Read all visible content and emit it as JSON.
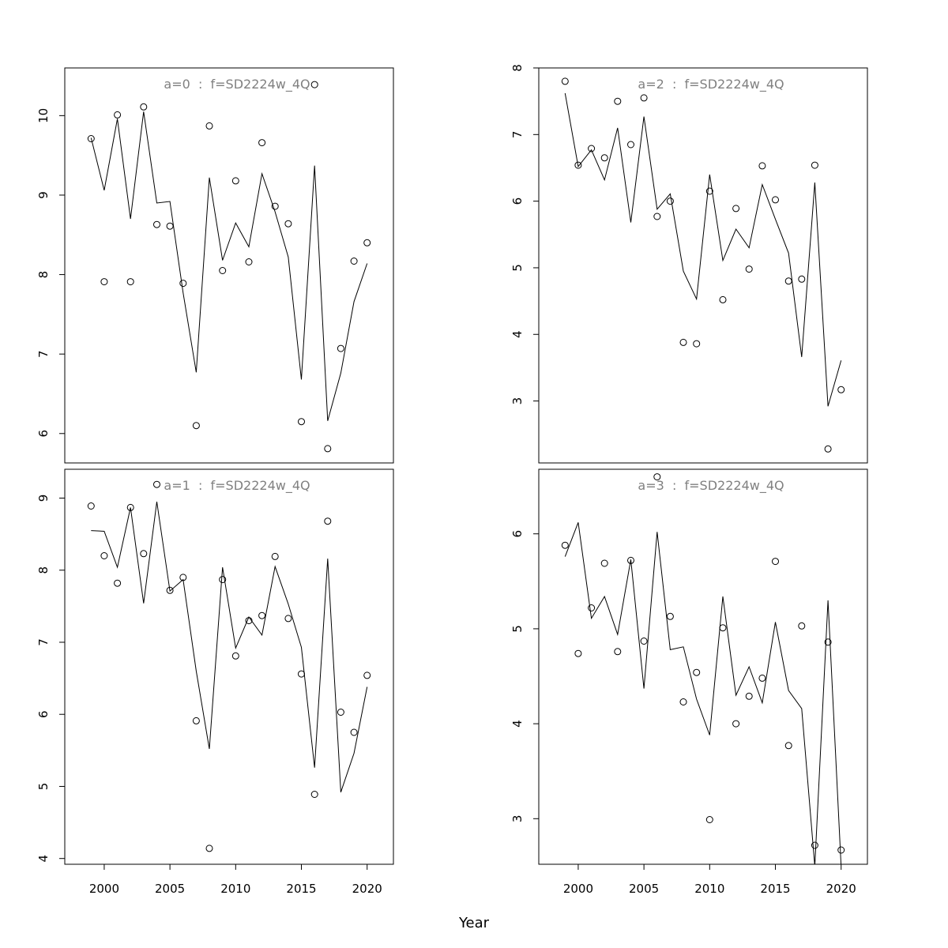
{
  "figure": {
    "xlabel": "Year"
  },
  "chart_data": [
    {
      "type": "scatter",
      "title": "a=0  :  f=SD2224w_4Q",
      "xlabel": "",
      "ylabel": "",
      "xlim": [
        1997,
        2022
      ],
      "ylim": [
        5.63,
        10.6
      ],
      "yticks": [
        6,
        7,
        8,
        9,
        10
      ],
      "xticks": [
        2000,
        2005,
        2010,
        2015,
        2020
      ],
      "show_xtick_labels": false,
      "x": [
        1999,
        2000,
        2001,
        2002,
        2003,
        2004,
        2005,
        2006,
        2007,
        2008,
        2009,
        2010,
        2011,
        2012,
        2013,
        2014,
        2015,
        2016,
        2017,
        2018,
        2019,
        2020
      ],
      "series": [
        {
          "kind": "points",
          "values": [
            9.71,
            7.91,
            10.01,
            7.91,
            10.11,
            8.63,
            8.61,
            7.89,
            6.1,
            9.87,
            8.05,
            9.18,
            8.16,
            9.66,
            8.86,
            8.64,
            6.15,
            10.39,
            5.81,
            7.07,
            8.17,
            8.4
          ]
        },
        {
          "kind": "line",
          "values": [
            9.72,
            9.06,
            9.96,
            8.7,
            10.05,
            8.9,
            8.92,
            7.77,
            6.77,
            9.22,
            8.18,
            8.65,
            8.35,
            9.27,
            8.79,
            8.22,
            6.68,
            9.37,
            6.16,
            6.76,
            7.66,
            8.14
          ]
        }
      ]
    },
    {
      "type": "scatter",
      "title": "a=2  :  f=SD2224w_4Q",
      "xlabel": "",
      "ylabel": "",
      "xlim": [
        1997,
        2022
      ],
      "ylim": [
        2.07,
        8.0
      ],
      "yticks": [
        3,
        4,
        5,
        6,
        7,
        8
      ],
      "xticks": [
        2000,
        2005,
        2010,
        2015,
        2020
      ],
      "show_xtick_labels": false,
      "x": [
        1999,
        2000,
        2001,
        2002,
        2003,
        2004,
        2005,
        2006,
        2007,
        2008,
        2009,
        2010,
        2011,
        2012,
        2013,
        2014,
        2015,
        2016,
        2017,
        2018,
        2019,
        2020
      ],
      "series": [
        {
          "kind": "points",
          "values": [
            7.8,
            6.54,
            6.79,
            6.65,
            7.5,
            6.85,
            7.55,
            5.77,
            6.0,
            3.88,
            3.86,
            6.15,
            4.52,
            5.89,
            4.98,
            6.53,
            6.02,
            4.8,
            4.83,
            6.54,
            2.28,
            3.17
          ]
        },
        {
          "kind": "line",
          "values": [
            7.62,
            6.52,
            6.77,
            6.32,
            7.1,
            5.68,
            7.27,
            5.88,
            6.11,
            4.95,
            4.53,
            6.4,
            5.11,
            5.58,
            5.3,
            6.25,
            5.73,
            5.22,
            3.66,
            6.28,
            2.92,
            3.61
          ]
        }
      ]
    },
    {
      "type": "scatter",
      "title": "a=1  :  f=SD2224w_4Q",
      "xlabel": "",
      "ylabel": "",
      "xlim": [
        1997,
        2022
      ],
      "ylim": [
        3.92,
        9.4
      ],
      "yticks": [
        4,
        5,
        6,
        7,
        8,
        9
      ],
      "xticks": [
        2000,
        2005,
        2010,
        2015,
        2020
      ],
      "show_xtick_labels": true,
      "x": [
        1999,
        2000,
        2001,
        2002,
        2003,
        2004,
        2005,
        2006,
        2007,
        2008,
        2009,
        2010,
        2011,
        2012,
        2013,
        2014,
        2015,
        2016,
        2017,
        2018,
        2019,
        2020
      ],
      "series": [
        {
          "kind": "points",
          "values": [
            8.89,
            8.2,
            7.82,
            8.87,
            8.23,
            9.19,
            7.72,
            7.9,
            5.91,
            4.14,
            7.87,
            6.81,
            7.3,
            7.37,
            8.19,
            7.33,
            6.56,
            4.89,
            8.68,
            6.03,
            5.75,
            6.54
          ]
        },
        {
          "kind": "line",
          "values": [
            8.55,
            8.54,
            8.04,
            8.87,
            7.54,
            8.95,
            7.71,
            7.87,
            6.6,
            5.52,
            8.04,
            6.92,
            7.35,
            7.1,
            8.05,
            7.53,
            6.93,
            5.26,
            8.16,
            4.92,
            5.46,
            6.38
          ]
        }
      ]
    },
    {
      "type": "scatter",
      "title": "a=3  :  f=SD2224w_4Q",
      "xlabel": "",
      "ylabel": "",
      "xlim": [
        1997,
        2022
      ],
      "ylim": [
        2.52,
        6.68
      ],
      "yticks": [
        3,
        4,
        5,
        6
      ],
      "xticks": [
        2000,
        2005,
        2010,
        2015,
        2020
      ],
      "show_xtick_labels": true,
      "x": [
        1999,
        2000,
        2001,
        2002,
        2003,
        2004,
        2005,
        2006,
        2007,
        2008,
        2009,
        2010,
        2011,
        2012,
        2013,
        2014,
        2015,
        2016,
        2017,
        2018,
        2019,
        2020
      ],
      "series": [
        {
          "kind": "points",
          "values": [
            5.88,
            4.74,
            5.22,
            5.69,
            4.76,
            5.72,
            4.87,
            6.6,
            5.13,
            4.23,
            4.54,
            2.99,
            5.01,
            4.0,
            4.29,
            4.48,
            5.71,
            3.77,
            5.03,
            2.72,
            4.86,
            2.67
          ]
        },
        {
          "kind": "line",
          "values": [
            5.76,
            6.12,
            5.11,
            5.34,
            4.94,
            5.73,
            4.37,
            6.02,
            4.78,
            4.81,
            4.26,
            3.88,
            5.34,
            4.3,
            4.6,
            4.22,
            5.07,
            4.35,
            4.16,
            2.5,
            5.3,
            2.5
          ]
        }
      ]
    }
  ]
}
